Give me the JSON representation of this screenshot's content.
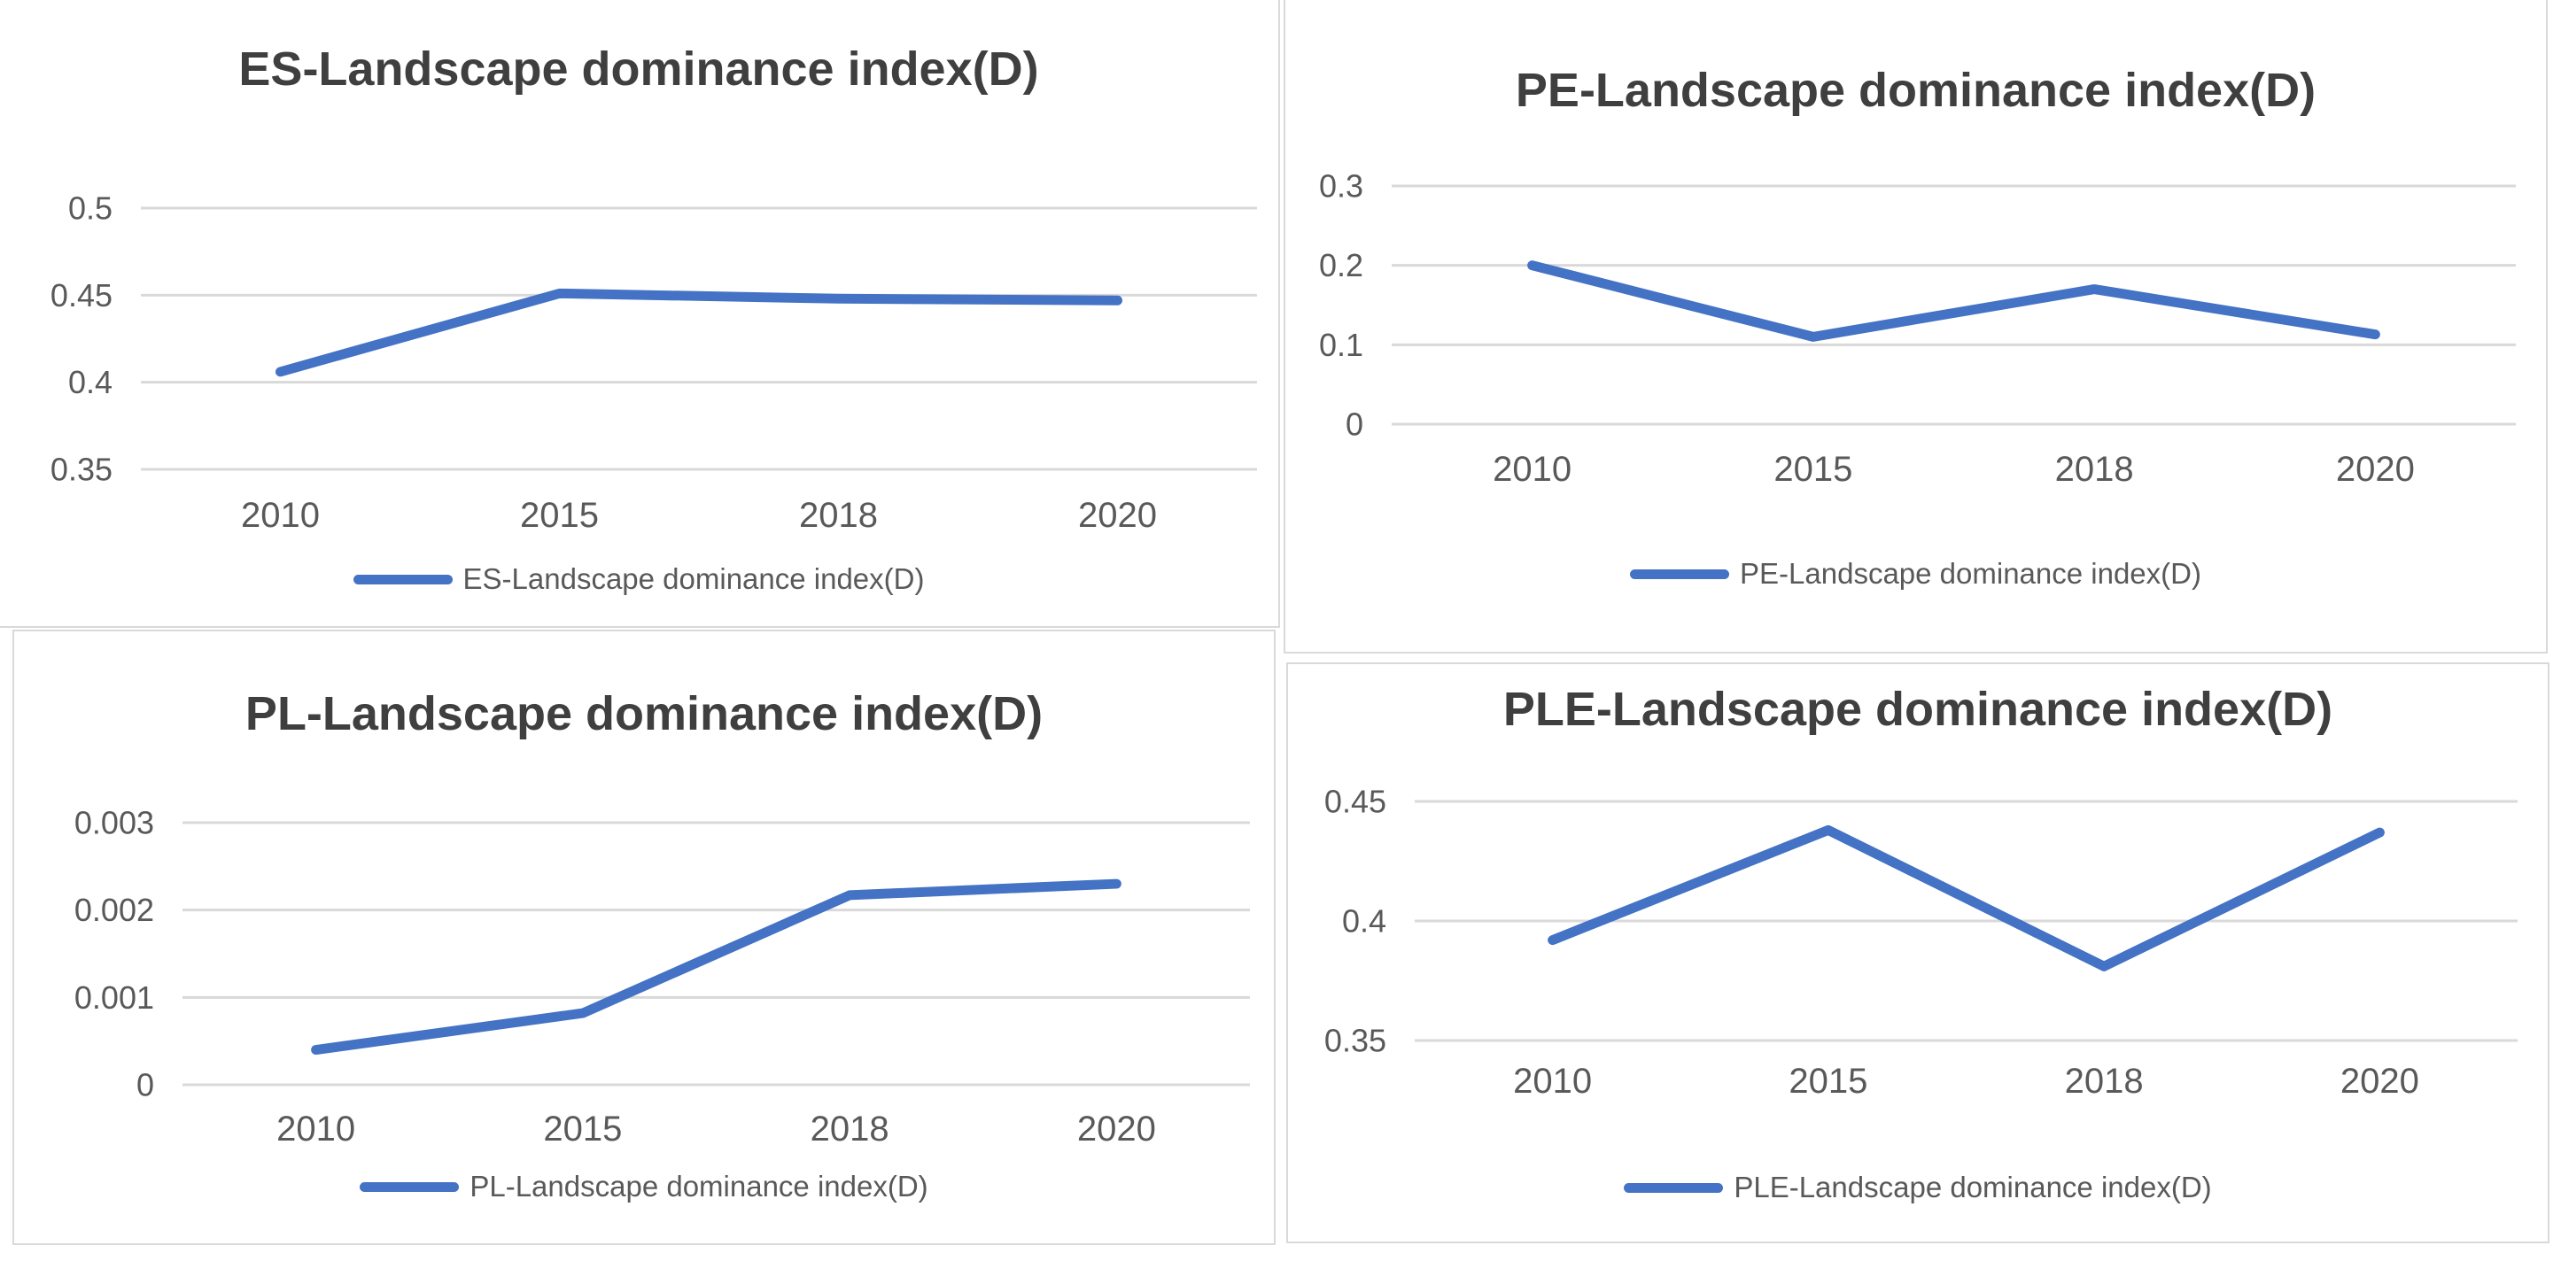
{
  "colors": {
    "series_line": "#4472C4",
    "gridline": "#D9D9D9",
    "panel_border": "#D9D9D9",
    "title_text": "#3F3F3F",
    "axis_text": "#595959",
    "legend_text": "#595959",
    "background": "#FFFFFF"
  },
  "chart_data": [
    {
      "type": "line",
      "id": "es",
      "title": "ES-Landscape dominance index(D)",
      "categories": [
        "2010",
        "2015",
        "2018",
        "2020"
      ],
      "series": [
        {
          "name": "ES-Landscape dominance index(D)",
          "values": [
            0.406,
            0.451,
            0.448,
            0.447
          ]
        }
      ],
      "ylim": [
        0.35,
        0.5
      ],
      "y_ticks": [
        {
          "label": "0.5",
          "value": 0.5
        },
        {
          "label": "0.45",
          "value": 0.45
        },
        {
          "label": "0.4",
          "value": 0.4
        },
        {
          "label": "0.35",
          "value": 0.35
        }
      ],
      "grid": "horizontal",
      "legend_position": "bottom",
      "legend": [
        "ES-Landscape dominance index(D)"
      ]
    },
    {
      "type": "line",
      "id": "pe",
      "title": "PE-Landscape dominance index(D)",
      "categories": [
        "2010",
        "2015",
        "2018",
        "2020"
      ],
      "series": [
        {
          "name": "PE-Landscape dominance index(D)",
          "values": [
            0.2,
            0.11,
            0.17,
            0.113
          ]
        }
      ],
      "ylim": [
        0,
        0.3
      ],
      "y_ticks": [
        {
          "label": "0.3",
          "value": 0.3
        },
        {
          "label": "0.2",
          "value": 0.2
        },
        {
          "label": "0.1",
          "value": 0.1
        },
        {
          "label": "0",
          "value": 0
        }
      ],
      "grid": "horizontal",
      "legend_position": "bottom",
      "legend": [
        "PE-Landscape dominance index(D)"
      ]
    },
    {
      "type": "line",
      "id": "pl",
      "title": "PL-Landscape dominance index(D)",
      "categories": [
        "2010",
        "2015",
        "2018",
        "2020"
      ],
      "series": [
        {
          "name": "PL-Landscape dominance index(D)",
          "values": [
            0.0004,
            0.00082,
            0.00217,
            0.0023
          ]
        }
      ],
      "ylim": [
        0,
        0.003
      ],
      "y_ticks": [
        {
          "label": "0.003",
          "value": 0.003
        },
        {
          "label": "0.002",
          "value": 0.002
        },
        {
          "label": "0.001",
          "value": 0.001
        },
        {
          "label": "0",
          "value": 0
        }
      ],
      "grid": "horizontal",
      "legend_position": "bottom",
      "legend": [
        "PL-Landscape dominance index(D)"
      ]
    },
    {
      "type": "line",
      "id": "ple",
      "title": "PLE-Landscape dominance index(D)",
      "categories": [
        "2010",
        "2015",
        "2018",
        "2020"
      ],
      "series": [
        {
          "name": "PLE-Landscape dominance index(D)",
          "values": [
            0.392,
            0.438,
            0.381,
            0.437
          ]
        }
      ],
      "ylim": [
        0.35,
        0.45
      ],
      "y_ticks": [
        {
          "label": "0.45",
          "value": 0.45
        },
        {
          "label": "0.4",
          "value": 0.4
        },
        {
          "label": "0.35",
          "value": 0.35
        }
      ],
      "grid": "horizontal",
      "legend_position": "bottom",
      "legend": [
        "PLE-Landscape dominance index(D)"
      ]
    }
  ]
}
